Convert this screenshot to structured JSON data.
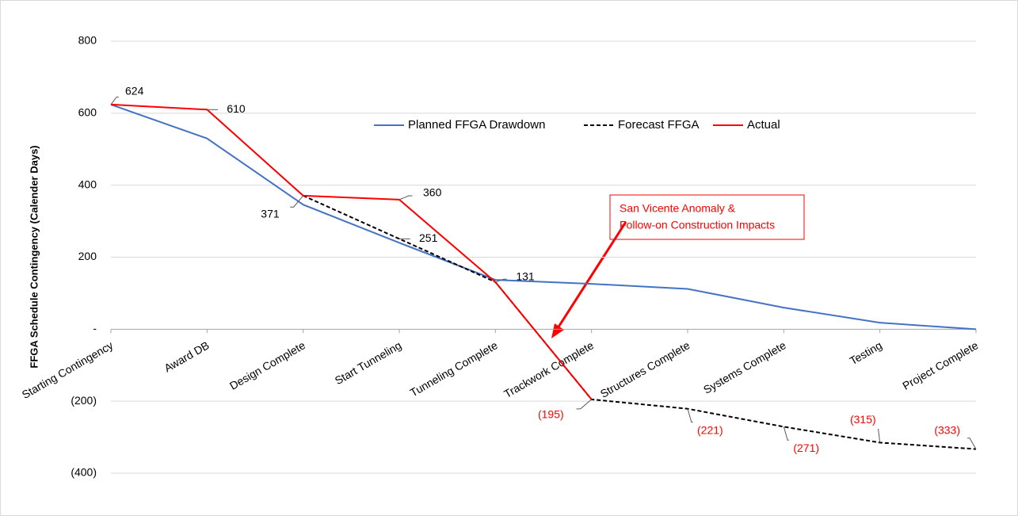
{
  "chart_data": {
    "type": "line",
    "y_axis_label": "FFGA Schedule Contingency (Calender Days)",
    "categories": [
      "Starting Contingency",
      "Award DB",
      "Design Complete",
      "Start Tunneling",
      "Tunneling Complete",
      "Trackwork Complete",
      "Structures Complete",
      "Systems Complete",
      "Testing",
      "Project Complete"
    ],
    "series": [
      {
        "name": "Planned FFGA Drawdown",
        "color": "#4472c4",
        "dash": false,
        "values": [
          624,
          530,
          346,
          240,
          137,
          126,
          112,
          60,
          18,
          0
        ]
      },
      {
        "name": "Forecast FFGA",
        "color": "#000000",
        "dash": true,
        "values": [
          null,
          null,
          371,
          251,
          131,
          -195,
          -221,
          -271,
          -315,
          -333
        ],
        "value_labels": [
          null,
          null,
          null,
          "251",
          null,
          "(195)",
          "(221)",
          "(271)",
          "(315)",
          "(333)"
        ]
      },
      {
        "name": "Actual",
        "color": "#ff0000",
        "dash": false,
        "values": [
          624,
          610,
          371,
          360,
          131,
          -195,
          null,
          null,
          null,
          null
        ],
        "value_labels": [
          "624",
          "610",
          "371",
          "360",
          "131",
          null,
          null,
          null,
          null,
          null
        ]
      }
    ],
    "ylim": [
      -400,
      800
    ],
    "yticks": [
      {
        "value": -400,
        "label": "(400)"
      },
      {
        "value": -200,
        "label": "(200)"
      },
      {
        "value": 0,
        "label": "-"
      },
      200,
      400,
      600,
      800
    ],
    "grid": true,
    "legend": "top",
    "annotation": [
      "San Vicente Anomaly &",
      "Follow-on Construction Impacts"
    ]
  }
}
